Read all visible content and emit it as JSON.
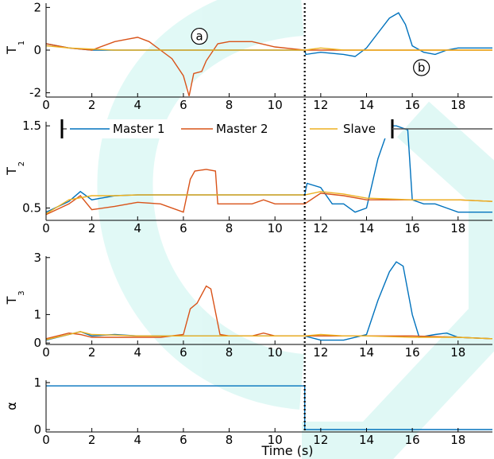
{
  "chart_data": [
    {
      "type": "line",
      "ylabel": "T",
      "ylabel_sub": "1",
      "xlim": [
        0,
        19.5
      ],
      "ylim": [
        -2.2,
        2.2
      ],
      "xticks": [
        "0",
        "2",
        "4",
        "6",
        "8",
        "10",
        "12",
        "14",
        "16",
        "18"
      ],
      "yticks": [
        {
          "v": 2,
          "t": "2"
        },
        {
          "v": 0,
          "t": "0"
        },
        {
          "v": -2,
          "t": "-2"
        }
      ],
      "annotations": [
        {
          "text": "a",
          "x": 6.7,
          "y": 0.65
        },
        {
          "text": "b",
          "x": 16.4,
          "y": -0.82
        }
      ],
      "series": [
        {
          "name": "Master 1",
          "color": "#0072bd",
          "points": [
            [
              0,
              0.3
            ],
            [
              1,
              0.1
            ],
            [
              2,
              0
            ],
            [
              4,
              0
            ],
            [
              6,
              0
            ],
            [
              8,
              0
            ],
            [
              10,
              0
            ],
            [
              11.3,
              0
            ],
            [
              11.35,
              -0.2
            ],
            [
              12,
              -0.1
            ],
            [
              13,
              -0.2
            ],
            [
              13.5,
              -0.3
            ],
            [
              14,
              0.1
            ],
            [
              14.5,
              0.8
            ],
            [
              15,
              1.5
            ],
            [
              15.4,
              1.75
            ],
            [
              15.7,
              1.2
            ],
            [
              16,
              0.2
            ],
            [
              16.5,
              -0.1
            ],
            [
              17,
              -0.2
            ],
            [
              17.5,
              0
            ],
            [
              18,
              0.1
            ],
            [
              19.5,
              0.1
            ]
          ]
        },
        {
          "name": "Master 2",
          "color": "#d95319",
          "points": [
            [
              0,
              0.3
            ],
            [
              1,
              0.1
            ],
            [
              2,
              0
            ],
            [
              3,
              0.4
            ],
            [
              3.5,
              0.5
            ],
            [
              4,
              0.6
            ],
            [
              4.5,
              0.4
            ],
            [
              5,
              0
            ],
            [
              5.5,
              -0.4
            ],
            [
              6,
              -1.2
            ],
            [
              6.25,
              -2.15
            ],
            [
              6.45,
              -1.1
            ],
            [
              6.8,
              -1.0
            ],
            [
              7,
              -0.5
            ],
            [
              7.5,
              0.3
            ],
            [
              8,
              0.4
            ],
            [
              9,
              0.4
            ],
            [
              10,
              0.15
            ],
            [
              11.3,
              0
            ],
            [
              12,
              0
            ],
            [
              14,
              0
            ],
            [
              16,
              0
            ],
            [
              18,
              0
            ],
            [
              19.5,
              0
            ]
          ]
        },
        {
          "name": "Slave",
          "color": "#edb120",
          "points": [
            [
              0,
              0.2
            ],
            [
              1,
              0.1
            ],
            [
              2,
              0.05
            ],
            [
              3,
              0
            ],
            [
              4,
              0
            ],
            [
              6,
              0
            ],
            [
              8,
              0
            ],
            [
              9,
              0
            ],
            [
              10,
              0
            ],
            [
              11.3,
              0
            ],
            [
              12,
              0.1
            ],
            [
              13,
              0
            ],
            [
              14,
              0
            ],
            [
              16,
              0
            ],
            [
              18,
              0
            ],
            [
              19.5,
              0
            ]
          ]
        }
      ]
    },
    {
      "type": "line",
      "ylabel": "T",
      "ylabel_sub": "2",
      "xlim": [
        0,
        19.5
      ],
      "ylim": [
        0.35,
        1.55
      ],
      "xticks": [
        "0",
        "2",
        "4",
        "6",
        "8",
        "10",
        "12",
        "14",
        "16",
        "18"
      ],
      "yticks": [
        {
          "v": 1.5,
          "t": "1.5"
        },
        {
          "v": 0.5,
          "t": "0.5"
        }
      ],
      "legend": {
        "entries": [
          "Master 1",
          "Master 2",
          "Slave"
        ],
        "position": "top"
      },
      "series": [
        {
          "name": "Master 1",
          "color": "#0072bd",
          "points": [
            [
              0,
              0.45
            ],
            [
              1,
              0.58
            ],
            [
              1.5,
              0.7
            ],
            [
              2,
              0.6
            ],
            [
              3,
              0.65
            ],
            [
              4,
              0.66
            ],
            [
              6,
              0.66
            ],
            [
              8,
              0.66
            ],
            [
              10,
              0.66
            ],
            [
              11.3,
              0.66
            ],
            [
              11.4,
              0.8
            ],
            [
              12,
              0.75
            ],
            [
              12.5,
              0.55
            ],
            [
              13,
              0.55
            ],
            [
              13.5,
              0.45
            ],
            [
              14,
              0.5
            ],
            [
              14.5,
              1.1
            ],
            [
              15,
              1.5
            ],
            [
              15.3,
              1.5
            ],
            [
              15.8,
              1.45
            ],
            [
              16,
              0.6
            ],
            [
              16.5,
              0.55
            ],
            [
              17,
              0.55
            ],
            [
              17.5,
              0.5
            ],
            [
              18,
              0.45
            ],
            [
              19.5,
              0.45
            ]
          ]
        },
        {
          "name": "Master 2",
          "color": "#d95319",
          "points": [
            [
              0,
              0.42
            ],
            [
              1,
              0.55
            ],
            [
              1.5,
              0.65
            ],
            [
              2,
              0.48
            ],
            [
              3,
              0.52
            ],
            [
              4,
              0.57
            ],
            [
              5,
              0.55
            ],
            [
              6,
              0.45
            ],
            [
              6.3,
              0.85
            ],
            [
              6.5,
              0.95
            ],
            [
              7,
              0.97
            ],
            [
              7.4,
              0.95
            ],
            [
              7.5,
              0.55
            ],
            [
              8,
              0.55
            ],
            [
              9,
              0.55
            ],
            [
              9.5,
              0.6
            ],
            [
              10,
              0.55
            ],
            [
              11.3,
              0.55
            ],
            [
              12,
              0.68
            ],
            [
              13,
              0.65
            ],
            [
              14,
              0.6
            ],
            [
              16,
              0.6
            ],
            [
              18,
              0.6
            ],
            [
              19.5,
              0.58
            ]
          ]
        },
        {
          "name": "Slave",
          "color": "#edb120",
          "points": [
            [
              0,
              0.43
            ],
            [
              1,
              0.6
            ],
            [
              2,
              0.65
            ],
            [
              3,
              0.65
            ],
            [
              4,
              0.66
            ],
            [
              6,
              0.66
            ],
            [
              8,
              0.66
            ],
            [
              10,
              0.66
            ],
            [
              11.3,
              0.66
            ],
            [
              12,
              0.7
            ],
            [
              13,
              0.67
            ],
            [
              14,
              0.62
            ],
            [
              16,
              0.6
            ],
            [
              18,
              0.6
            ],
            [
              19.5,
              0.58
            ]
          ]
        }
      ]
    },
    {
      "type": "line",
      "ylabel": "T",
      "ylabel_sub": "3",
      "xlim": [
        0,
        19.5
      ],
      "ylim": [
        -0.05,
        3.05
      ],
      "xticks": [
        "0",
        "2",
        "4",
        "6",
        "8",
        "10",
        "12",
        "14",
        "16",
        "18"
      ],
      "yticks": [
        {
          "v": 3,
          "t": "3"
        },
        {
          "v": 1,
          "t": "1"
        },
        {
          "v": 0,
          "t": "0"
        }
      ],
      "series": [
        {
          "name": "Master 1",
          "color": "#0072bd",
          "points": [
            [
              0,
              0.1
            ],
            [
              1,
              0.3
            ],
            [
              1.5,
              0.4
            ],
            [
              2,
              0.25
            ],
            [
              3,
              0.3
            ],
            [
              4,
              0.25
            ],
            [
              6,
              0.25
            ],
            [
              8,
              0.25
            ],
            [
              10,
              0.25
            ],
            [
              11.3,
              0.25
            ],
            [
              12,
              0.1
            ],
            [
              13,
              0.1
            ],
            [
              14,
              0.3
            ],
            [
              14.5,
              1.5
            ],
            [
              15,
              2.5
            ],
            [
              15.3,
              2.85
            ],
            [
              15.6,
              2.7
            ],
            [
              16,
              1.0
            ],
            [
              16.3,
              0.2
            ],
            [
              17,
              0.3
            ],
            [
              17.5,
              0.35
            ],
            [
              18,
              0.2
            ],
            [
              19.5,
              0.15
            ]
          ]
        },
        {
          "name": "Master 2",
          "color": "#d95319",
          "points": [
            [
              0,
              0.15
            ],
            [
              1,
              0.35
            ],
            [
              1.5,
              0.3
            ],
            [
              2,
              0.2
            ],
            [
              3,
              0.2
            ],
            [
              4,
              0.2
            ],
            [
              5,
              0.2
            ],
            [
              6,
              0.3
            ],
            [
              6.3,
              1.2
            ],
            [
              6.6,
              1.4
            ],
            [
              7,
              2.0
            ],
            [
              7.2,
              1.9
            ],
            [
              7.6,
              0.3
            ],
            [
              8,
              0.25
            ],
            [
              9,
              0.25
            ],
            [
              9.5,
              0.35
            ],
            [
              10,
              0.25
            ],
            [
              11.3,
              0.25
            ],
            [
              12,
              0.25
            ],
            [
              14,
              0.25
            ],
            [
              16,
              0.25
            ],
            [
              18,
              0.2
            ],
            [
              19.5,
              0.15
            ]
          ]
        },
        {
          "name": "Slave",
          "color": "#edb120",
          "points": [
            [
              0,
              0.12
            ],
            [
              1,
              0.3
            ],
            [
              1.5,
              0.4
            ],
            [
              2,
              0.3
            ],
            [
              3,
              0.28
            ],
            [
              4,
              0.25
            ],
            [
              6,
              0.25
            ],
            [
              8,
              0.25
            ],
            [
              10,
              0.25
            ],
            [
              11.3,
              0.25
            ],
            [
              12,
              0.3
            ],
            [
              13,
              0.25
            ],
            [
              14,
              0.25
            ],
            [
              16,
              0.2
            ],
            [
              18,
              0.2
            ],
            [
              19.5,
              0.15
            ]
          ]
        }
      ]
    },
    {
      "type": "line",
      "ylabel": "α",
      "ylabel_sub": "",
      "xlabel": "Time (s)",
      "xlim": [
        0,
        19.5
      ],
      "ylim": [
        -0.05,
        1.05
      ],
      "xticks": [
        "0",
        "2",
        "4",
        "6",
        "8",
        "10",
        "12",
        "14",
        "16",
        "18"
      ],
      "yticks": [
        {
          "v": 1,
          "t": "1"
        },
        {
          "v": 0,
          "t": "0"
        }
      ],
      "series": [
        {
          "name": "α",
          "color": "#0072bd",
          "points": [
            [
              0,
              0.93
            ],
            [
              11.3,
              0.93
            ],
            [
              11.3,
              0
            ],
            [
              19.5,
              0
            ]
          ]
        }
      ]
    }
  ],
  "switch_time": 11.3,
  "colors": {
    "master1": "#0072bd",
    "master2": "#d95319",
    "slave": "#edb120",
    "watermark": "#c8f4ee"
  }
}
